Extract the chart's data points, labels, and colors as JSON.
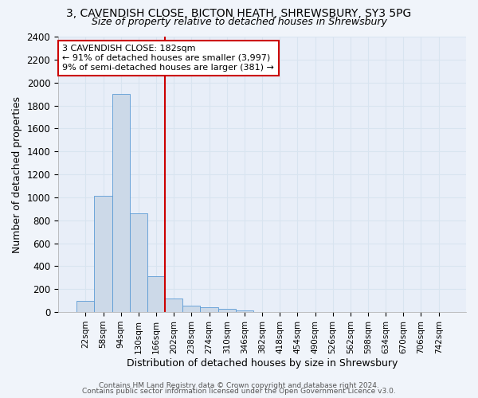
{
  "title1": "3, CAVENDISH CLOSE, BICTON HEATH, SHREWSBURY, SY3 5PG",
  "title2": "Size of property relative to detached houses in Shrewsbury",
  "xlabel": "Distribution of detached houses by size in Shrewsbury",
  "ylabel": "Number of detached properties",
  "bin_labels": [
    "22sqm",
    "58sqm",
    "94sqm",
    "130sqm",
    "166sqm",
    "202sqm",
    "238sqm",
    "274sqm",
    "310sqm",
    "346sqm",
    "382sqm",
    "418sqm",
    "454sqm",
    "490sqm",
    "526sqm",
    "562sqm",
    "598sqm",
    "634sqm",
    "670sqm",
    "706sqm",
    "742sqm"
  ],
  "bar_heights": [
    95,
    1010,
    1900,
    860,
    310,
    120,
    55,
    42,
    25,
    18,
    0,
    0,
    0,
    0,
    0,
    0,
    0,
    0,
    0,
    0,
    0
  ],
  "bar_color": "#ccd9e8",
  "bar_edge_color": "#5b9bd5",
  "annotation_box_text": "3 CAVENDISH CLOSE: 182sqm\n← 91% of detached houses are smaller (3,997)\n9% of semi-detached houses are larger (381) →",
  "annotation_box_color": "#ffffff",
  "annotation_box_edge_color": "#cc0000",
  "vline_color": "#cc0000",
  "ylim": [
    0,
    2400
  ],
  "yticks": [
    0,
    200,
    400,
    600,
    800,
    1000,
    1200,
    1400,
    1600,
    1800,
    2000,
    2200,
    2400
  ],
  "footer1": "Contains HM Land Registry data © Crown copyright and database right 2024.",
  "footer2": "Contains public sector information licensed under the Open Government Licence v3.0.",
  "bg_color": "#f0f4fa",
  "grid_color": "#d8e4f0",
  "plot_bg_color": "#e8eef8"
}
